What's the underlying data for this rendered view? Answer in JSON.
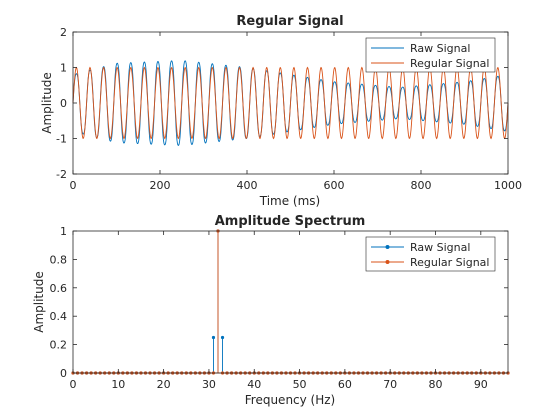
{
  "chart_data": [
    {
      "type": "line",
      "title": "Regular Signal",
      "xlabel": "Time (ms)",
      "ylabel": "Amplitude",
      "xlim": [
        0,
        1000
      ],
      "ylim": [
        -2,
        2
      ],
      "xticks": [
        0,
        200,
        400,
        600,
        800,
        1000
      ],
      "yticks": [
        -2,
        -1,
        0,
        1,
        2
      ],
      "grid": false,
      "legend_position": "top-right",
      "series": [
        {
          "name": "Raw Signal",
          "color": "#0072BD",
          "signal": {
            "carrier_hz": 32,
            "carrier_amp": 1.0,
            "sideband_hz": [
              31,
              33
            ],
            "sideband_amp": 0.25
          },
          "peak_envelope": [
            {
              "t": 0,
              "value": 1.0
            },
            {
              "t": 100,
              "value": 1.4
            },
            {
              "t": 250,
              "value": 1.5
            },
            {
              "t": 400,
              "value": 1.25
            },
            {
              "t": 500,
              "value": 1.0
            },
            {
              "t": 600,
              "value": 0.75
            },
            {
              "t": 750,
              "value": 0.55
            },
            {
              "t": 900,
              "value": 0.75
            },
            {
              "t": 1000,
              "value": 1.0
            }
          ]
        },
        {
          "name": "Regular Signal",
          "color": "#D95319",
          "signal": {
            "carrier_hz": 32,
            "carrier_amp": 1.0
          }
        }
      ]
    },
    {
      "type": "stem",
      "title": "Amplitude Spectrum",
      "xlabel": "Frequency (Hz)",
      "ylabel": "Amplitude",
      "xlim": [
        0,
        96
      ],
      "ylim": [
        0,
        1
      ],
      "xticks": [
        0,
        10,
        20,
        30,
        40,
        50,
        60,
        70,
        80,
        90
      ],
      "yticks": [
        0,
        0.2,
        0.4,
        0.6,
        0.8,
        1
      ],
      "grid": false,
      "legend_position": "top-right",
      "series": [
        {
          "name": "Raw Signal",
          "color": "#0072BD",
          "frequencies_hz": "0-96 step 1",
          "peaks": [
            {
              "x": 31,
              "y": 0.25
            },
            {
              "x": 32,
              "y": 1.0
            },
            {
              "x": 33,
              "y": 0.25
            }
          ]
        },
        {
          "name": "Regular Signal",
          "color": "#D95319",
          "frequencies_hz": "0-96 step 1",
          "peaks": [
            {
              "x": 32,
              "y": 1.0
            }
          ]
        }
      ]
    }
  ]
}
